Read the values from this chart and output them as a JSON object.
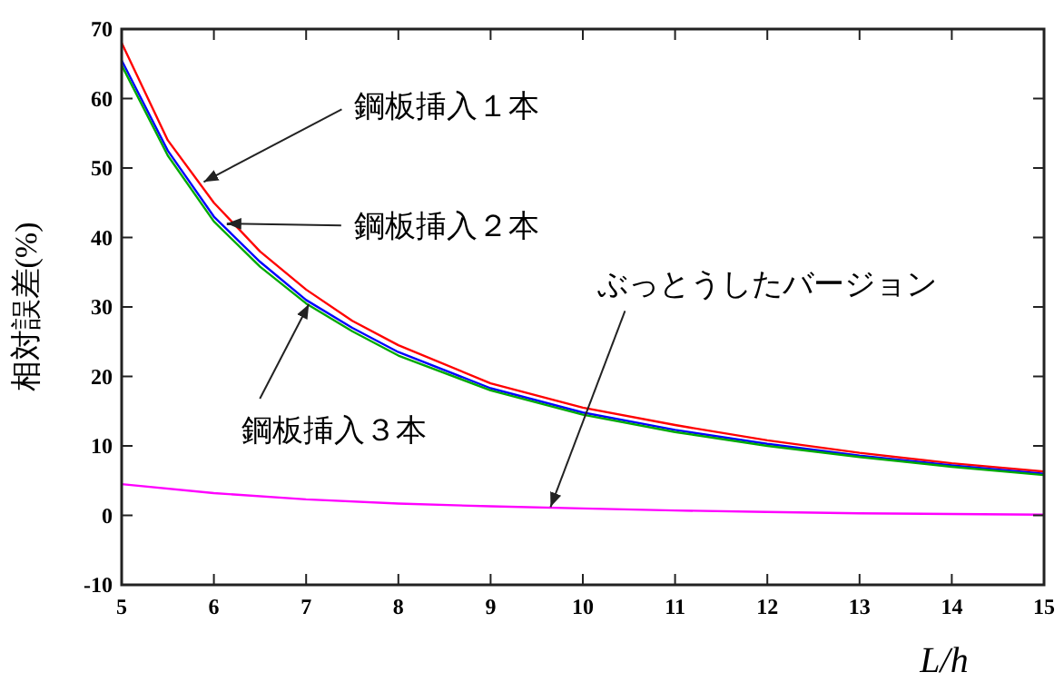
{
  "chart_data": {
    "type": "line",
    "xlabel": "L/h",
    "ylabel": "相対誤差(%)",
    "x": [
      5,
      5.5,
      6,
      6.5,
      7,
      7.5,
      8,
      9,
      10,
      11,
      12,
      13,
      14,
      15
    ],
    "series": [
      {
        "color": "#ff0000",
        "values": [
          68,
          54,
          45,
          38,
          32.5,
          28,
          24.5,
          19,
          15.5,
          13,
          10.8,
          9,
          7.5,
          6.3
        ]
      },
      {
        "color": "#0000ff",
        "values": [
          65.5,
          52.5,
          43,
          36.5,
          31,
          27,
          23.5,
          18.3,
          14.8,
          12.3,
          10.3,
          8.6,
          7.2,
          6
        ]
      },
      {
        "color": "#00aa00",
        "values": [
          64.8,
          51.8,
          42.3,
          35.8,
          30.5,
          26.5,
          23,
          18,
          14.5,
          12,
          10,
          8.4,
          7,
          5.8
        ]
      },
      {
        "color": "#ff00ff",
        "x": [
          5,
          6,
          7,
          8,
          9,
          10,
          11,
          12,
          13,
          14,
          15
        ],
        "values": [
          4.5,
          3.2,
          2.3,
          1.7,
          1.3,
          1,
          0.7,
          0.5,
          0.3,
          0.2,
          0.1
        ]
      }
    ],
    "xlim": [
      5,
      15
    ],
    "ylim": [
      -10,
      70
    ],
    "xticks": [
      5,
      6,
      7,
      8,
      9,
      10,
      11,
      12,
      13,
      14,
      15
    ],
    "yticks": [
      -10,
      0,
      10,
      20,
      30,
      40,
      50,
      60,
      70
    ],
    "grid": false,
    "marker": "none",
    "line_style": "solid",
    "annotations": [
      {
        "text": "鋼板挿入１本",
        "x": 5.89,
        "y": 48
      },
      {
        "text": "鋼板挿入２本",
        "x": 6.14,
        "y": 42
      },
      {
        "text": "鋼板挿入３本",
        "x": 7.03,
        "y": 30.4
      },
      {
        "text": "ぶっとうしたバージョン",
        "x": 9.65,
        "y": 1.2
      }
    ]
  }
}
